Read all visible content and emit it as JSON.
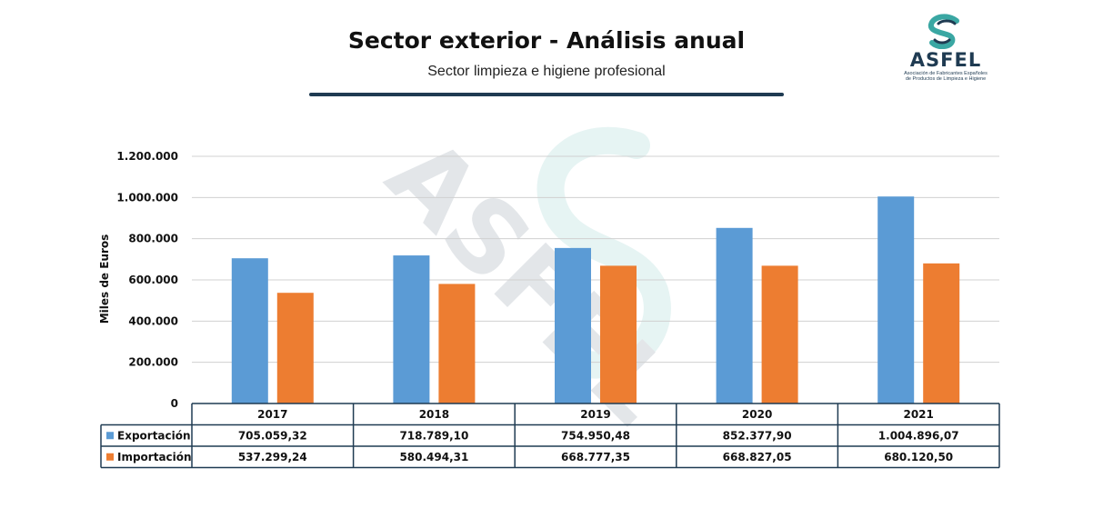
{
  "header": {
    "title": "Sector exterior - Análisis anual",
    "subtitle": "Sector limpieza e higiene profesional"
  },
  "logo": {
    "name": "ASFEL",
    "tagline_1": "Asociación de Fabricantes Españoles",
    "tagline_2": "de Productos de Limpieza e Higiene"
  },
  "colors": {
    "exportacion": "#5b9bd5",
    "importacion": "#ed7d31",
    "accent": "#1f3b52",
    "logo_teal": "#3aa7a3"
  },
  "chart_data": {
    "type": "bar",
    "categories": [
      "2017",
      "2018",
      "2019",
      "2020",
      "2021"
    ],
    "series": [
      {
        "name": "Exportación",
        "values": [
          705059.32,
          718789.1,
          754950.48,
          852377.9,
          1004896.07
        ],
        "labels": [
          "705.059,32",
          "718.789,10",
          "754.950,48",
          "852.377,90",
          "1.004.896,07"
        ]
      },
      {
        "name": "Importación",
        "values": [
          537299.24,
          580494.31,
          668777.35,
          668827.05,
          680120.5
        ],
        "labels": [
          "537.299,24",
          "580.494,31",
          "668.777,35",
          "668.827,05",
          "680.120,50"
        ]
      }
    ],
    "ylabel": "Miles de Euros",
    "ylim": [
      0,
      1200000
    ],
    "yticks": [
      0,
      200000,
      400000,
      600000,
      800000,
      1000000,
      1200000
    ],
    "ytick_labels": [
      "0",
      "200.000",
      "400.000",
      "600.000",
      "800.000",
      "1.000.000",
      "1.200.000"
    ],
    "grid": true,
    "legend": "data-table"
  }
}
